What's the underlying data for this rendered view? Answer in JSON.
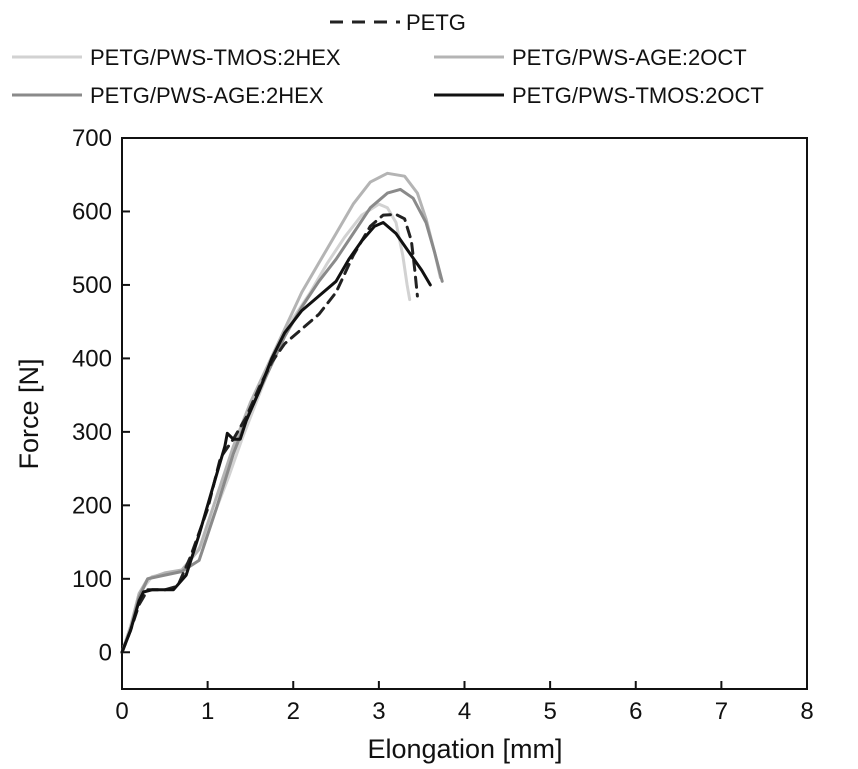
{
  "chart_data": {
    "type": "line",
    "title": "",
    "xlabel": "Elongation [mm]",
    "ylabel": "Force [N]",
    "xlim": [
      0,
      8
    ],
    "ylim": [
      -50,
      700
    ],
    "xticks": [
      0,
      1,
      2,
      3,
      4,
      5,
      6,
      7,
      8
    ],
    "yticks": [
      0,
      100,
      200,
      300,
      400,
      500,
      600,
      700
    ],
    "legend_position": "top",
    "series": [
      {
        "name": "PETG",
        "style": "dashed",
        "color": "#222222",
        "points": [
          [
            0,
            0
          ],
          [
            0.1,
            30
          ],
          [
            0.2,
            65
          ],
          [
            0.3,
            85
          ],
          [
            0.5,
            85
          ],
          [
            0.65,
            90
          ],
          [
            0.8,
            130
          ],
          [
            1.0,
            195
          ],
          [
            1.15,
            265
          ],
          [
            1.3,
            290
          ],
          [
            1.45,
            320
          ],
          [
            1.6,
            360
          ],
          [
            1.75,
            395
          ],
          [
            1.9,
            420
          ],
          [
            2.1,
            440
          ],
          [
            2.3,
            460
          ],
          [
            2.5,
            490
          ],
          [
            2.7,
            540
          ],
          [
            2.9,
            580
          ],
          [
            3.05,
            595
          ],
          [
            3.2,
            596
          ],
          [
            3.3,
            590
          ],
          [
            3.38,
            560
          ],
          [
            3.42,
            520
          ],
          [
            3.45,
            485
          ]
        ]
      },
      {
        "name": "PETG/PWS-TMOS:2HEX",
        "style": "solid",
        "color": "#d2d2d2",
        "points": [
          [
            0,
            0
          ],
          [
            0.1,
            35
          ],
          [
            0.2,
            80
          ],
          [
            0.35,
            103
          ],
          [
            0.55,
            107
          ],
          [
            0.7,
            110
          ],
          [
            0.95,
            150
          ],
          [
            1.1,
            195
          ],
          [
            1.25,
            240
          ],
          [
            1.4,
            290
          ],
          [
            1.6,
            350
          ],
          [
            1.8,
            410
          ],
          [
            2.0,
            455
          ],
          [
            2.2,
            490
          ],
          [
            2.4,
            530
          ],
          [
            2.6,
            565
          ],
          [
            2.8,
            595
          ],
          [
            3.0,
            610
          ],
          [
            3.1,
            605
          ],
          [
            3.2,
            585
          ],
          [
            3.28,
            540
          ],
          [
            3.33,
            500
          ],
          [
            3.36,
            480
          ]
        ]
      },
      {
        "name": "PETG/PWS-AGE:2OCT",
        "style": "solid",
        "color": "#b4b4b4",
        "points": [
          [
            0,
            0
          ],
          [
            0.1,
            35
          ],
          [
            0.2,
            80
          ],
          [
            0.3,
            100
          ],
          [
            0.5,
            108
          ],
          [
            0.7,
            112
          ],
          [
            0.9,
            140
          ],
          [
            1.1,
            210
          ],
          [
            1.3,
            280
          ],
          [
            1.5,
            340
          ],
          [
            1.7,
            390
          ],
          [
            1.9,
            440
          ],
          [
            2.1,
            490
          ],
          [
            2.3,
            530
          ],
          [
            2.5,
            570
          ],
          [
            2.7,
            610
          ],
          [
            2.9,
            640
          ],
          [
            3.1,
            652
          ],
          [
            3.3,
            648
          ],
          [
            3.45,
            625
          ],
          [
            3.55,
            590
          ],
          [
            3.65,
            545
          ],
          [
            3.72,
            510
          ]
        ]
      },
      {
        "name": "PETG/PWS-AGE:2HEX",
        "style": "solid",
        "color": "#8a8a8a",
        "points": [
          [
            0,
            0
          ],
          [
            0.1,
            30
          ],
          [
            0.2,
            75
          ],
          [
            0.3,
            100
          ],
          [
            0.5,
            105
          ],
          [
            0.7,
            110
          ],
          [
            0.9,
            125
          ],
          [
            1.1,
            195
          ],
          [
            1.3,
            270
          ],
          [
            1.5,
            330
          ],
          [
            1.7,
            380
          ],
          [
            1.9,
            430
          ],
          [
            2.1,
            470
          ],
          [
            2.3,
            505
          ],
          [
            2.5,
            535
          ],
          [
            2.7,
            570
          ],
          [
            2.9,
            605
          ],
          [
            3.1,
            625
          ],
          [
            3.25,
            630
          ],
          [
            3.4,
            618
          ],
          [
            3.55,
            585
          ],
          [
            3.65,
            545
          ],
          [
            3.74,
            505
          ]
        ]
      },
      {
        "name": "PETG/PWS-TMOS:2OCT",
        "style": "solid",
        "color": "#111111",
        "points": [
          [
            0,
            0
          ],
          [
            0.1,
            30
          ],
          [
            0.2,
            70
          ],
          [
            0.25,
            82
          ],
          [
            0.35,
            85
          ],
          [
            0.6,
            85
          ],
          [
            0.75,
            105
          ],
          [
            0.9,
            160
          ],
          [
            1.05,
            220
          ],
          [
            1.2,
            280
          ],
          [
            1.23,
            298
          ],
          [
            1.3,
            290
          ],
          [
            1.38,
            290
          ],
          [
            1.45,
            315
          ],
          [
            1.6,
            355
          ],
          [
            1.75,
            400
          ],
          [
            1.9,
            435
          ],
          [
            2.1,
            465
          ],
          [
            2.3,
            485
          ],
          [
            2.5,
            505
          ],
          [
            2.65,
            535
          ],
          [
            2.8,
            560
          ],
          [
            2.95,
            580
          ],
          [
            3.05,
            585
          ],
          [
            3.2,
            570
          ],
          [
            3.35,
            545
          ],
          [
            3.5,
            520
          ],
          [
            3.6,
            500
          ]
        ]
      }
    ]
  }
}
